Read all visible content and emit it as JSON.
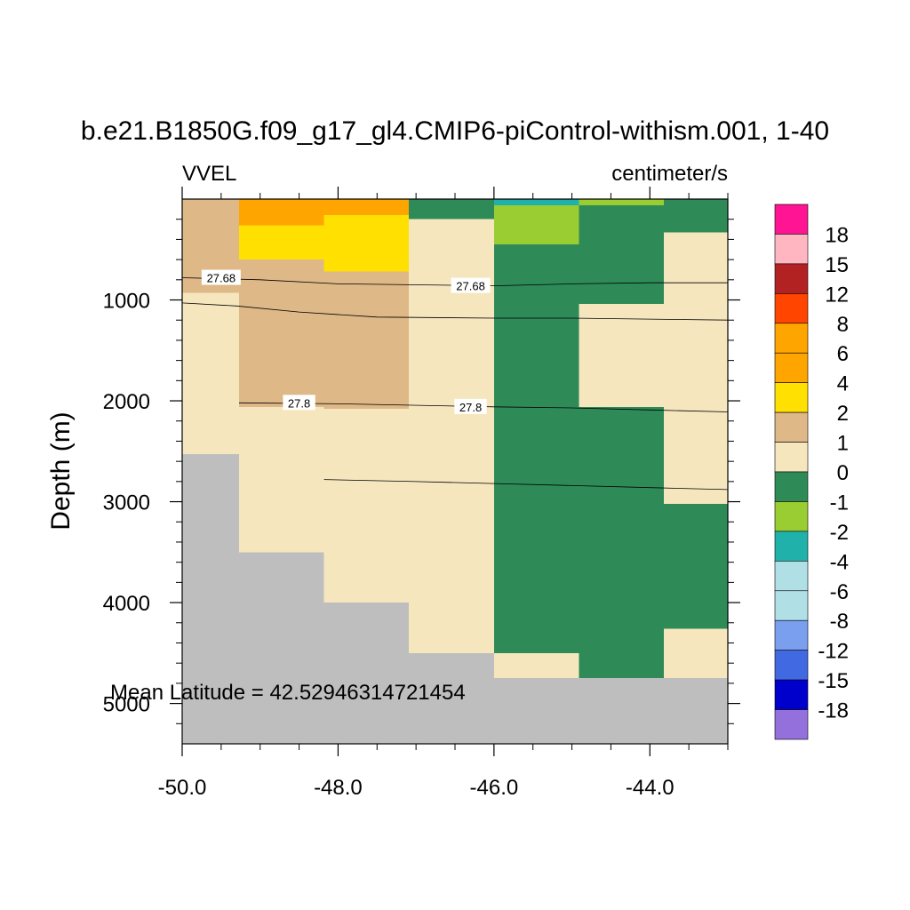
{
  "chart_data": {
    "type": "heatmap",
    "title": "b.e21.B1850G.f09_g17_gl4.CMIP6-piControl-withism.001, 1-40",
    "left_label": "VVEL",
    "right_label": "centimeter/s",
    "ylabel": "Depth (m)",
    "xlabel": "",
    "annotation": "Mean Latitude = 42.52946314721454",
    "xlim": [
      -50.0,
      -43.0
    ],
    "ylim": [
      5400,
      0
    ],
    "x_ticks": [
      -50.0,
      -48.0,
      -46.0,
      -44.0
    ],
    "x_tick_labels": [
      "-50.0",
      "-48.0",
      "-46.0",
      "-44.0"
    ],
    "y_ticks": [
      1000,
      2000,
      3000,
      4000,
      5000
    ],
    "y_tick_labels": [
      "1000",
      "2000",
      "3000",
      "4000",
      "5000"
    ],
    "x_edges": [
      -50.0,
      -49.27,
      -48.18,
      -47.09,
      -46.0,
      -44.91,
      -43.82,
      -43.0
    ],
    "missing_color": "#bebebe",
    "columns": [
      [
        [
          0,
          930,
          "#deb887"
        ],
        [
          930,
          2530,
          "#f5e6be"
        ],
        [
          2530,
          5400,
          "#bebebe"
        ]
      ],
      [
        [
          0,
          260,
          "#ffa500"
        ],
        [
          260,
          600,
          "#ffe000"
        ],
        [
          600,
          2060,
          "#deb887"
        ],
        [
          2060,
          3500,
          "#f5e6be"
        ],
        [
          3500,
          5400,
          "#bebebe"
        ]
      ],
      [
        [
          0,
          60,
          "#ffa500"
        ],
        [
          60,
          160,
          "#ffa500"
        ],
        [
          160,
          720,
          "#ffe000"
        ],
        [
          720,
          2080,
          "#deb887"
        ],
        [
          2080,
          4000,
          "#f5e6be"
        ],
        [
          4000,
          5400,
          "#bebebe"
        ]
      ],
      [
        [
          0,
          200,
          "#2e8b57"
        ],
        [
          200,
          4500,
          "#f5e6be"
        ],
        [
          4500,
          5400,
          "#bebebe"
        ]
      ],
      [
        [
          0,
          60,
          "#20b2aa"
        ],
        [
          60,
          450,
          "#9acd32"
        ],
        [
          450,
          4500,
          "#2e8b57"
        ],
        [
          4500,
          4750,
          "#f5e6be"
        ],
        [
          4750,
          5400,
          "#bebebe"
        ]
      ],
      [
        [
          0,
          60,
          "#9acd32"
        ],
        [
          60,
          1040,
          "#2e8b57"
        ],
        [
          1040,
          2060,
          "#f5e6be"
        ],
        [
          2060,
          4750,
          "#2e8b57"
        ],
        [
          4750,
          5400,
          "#bebebe"
        ]
      ],
      [
        [
          0,
          330,
          "#2e8b57"
        ],
        [
          330,
          3020,
          "#f5e6be"
        ],
        [
          3020,
          4260,
          "#2e8b57"
        ],
        [
          4260,
          4750,
          "#f5e6be"
        ],
        [
          4750,
          5400,
          "#bebebe"
        ]
      ]
    ],
    "contours": [
      {
        "level": "27.68",
        "points": [
          [
            -50.0,
            780
          ],
          [
            -49.0,
            800
          ],
          [
            -48.0,
            840
          ],
          [
            -46.0,
            860
          ],
          [
            -45.0,
            840
          ],
          [
            -44.0,
            830
          ],
          [
            -43.0,
            830
          ]
        ],
        "labels": [
          {
            "text": "27.68",
            "x": -49.5,
            "y": 780
          },
          {
            "text": "27.68",
            "x": -46.3,
            "y": 860
          }
        ]
      },
      {
        "level": "",
        "points": [
          [
            -50.0,
            1030
          ],
          [
            -49.3,
            1060
          ],
          [
            -48.5,
            1120
          ],
          [
            -47.5,
            1170
          ],
          [
            -46.0,
            1180
          ],
          [
            -45.0,
            1180
          ],
          [
            -44.0,
            1190
          ],
          [
            -43.0,
            1200
          ]
        ],
        "labels": []
      },
      {
        "level": "27.8",
        "points": [
          [
            -49.27,
            2020
          ],
          [
            -48.0,
            2030
          ],
          [
            -46.0,
            2060
          ],
          [
            -45.0,
            2070
          ],
          [
            -44.0,
            2090
          ],
          [
            -43.0,
            2110
          ]
        ],
        "labels": [
          {
            "text": "27.8",
            "x": -48.5,
            "y": 2020
          },
          {
            "text": "27.8",
            "x": -46.3,
            "y": 2060
          }
        ]
      },
      {
        "level": "",
        "points": [
          [
            -48.18,
            2780
          ],
          [
            -47.0,
            2800
          ],
          [
            -46.0,
            2820
          ],
          [
            -45.0,
            2840
          ],
          [
            -44.0,
            2860
          ],
          [
            -43.0,
            2880
          ]
        ],
        "labels": []
      }
    ],
    "colorbar": {
      "colors": [
        "#ff1493",
        "#ffb6c1",
        "#b22222",
        "#ff4500",
        "#ffa500",
        "#ffa500",
        "#ffe000",
        "#deb887",
        "#f5e6be",
        "#2e8b57",
        "#9acd32",
        "#20b2aa",
        "#b0e0e6",
        "#b0e0e6",
        "#7b9fef",
        "#4169e1",
        "#0000cd",
        "#9370db"
      ],
      "labels": [
        "18",
        "15",
        "12",
        "8",
        "6",
        "4",
        "2",
        "1",
        "0",
        "-1",
        "-2",
        "-4",
        "-6",
        "-8",
        "-12",
        "-15",
        "-18"
      ]
    }
  }
}
